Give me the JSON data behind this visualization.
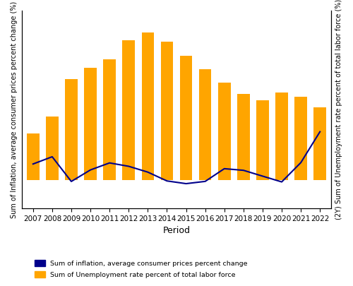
{
  "years": [
    2007,
    2008,
    2009,
    2010,
    2011,
    2012,
    2013,
    2014,
    2015,
    2016,
    2017,
    2018,
    2019,
    2020,
    2021,
    2022
  ],
  "unemployment": [
    8.23,
    11.25,
    17.86,
    19.86,
    21.39,
    24.79,
    26.09,
    24.44,
    22.06,
    19.64,
    17.22,
    15.26,
    14.1,
    15.53,
    14.78,
    12.92
  ],
  "inflation": [
    2.85,
    4.13,
    -0.24,
    1.8,
    3.04,
    2.44,
    1.41,
    -0.15,
    -0.63,
    -0.23,
    2.02,
    1.73,
    0.7,
    -0.32,
    3.09,
    8.56
  ],
  "bar_color": "#FFA500",
  "line_color": "#00008B",
  "ylabel_left": "Sum of Inflation, average consumer prices percent change (%)",
  "ylabel_right": "(2Y) Sum of Unemployment rate percent of total labor force (%)",
  "xlabel": "Period",
  "legend_inflation": "Sum of inflation, average consumer prices percent change",
  "legend_unemployment": "Sum of Unemployment rate percent of total labor force",
  "background_color": "#ffffff",
  "grid_color": "#dddddd",
  "left_ylim": [
    -5,
    30
  ],
  "right_ylim": [
    -5,
    30
  ],
  "figsize": [
    5.0,
    4.05
  ],
  "dpi": 100
}
